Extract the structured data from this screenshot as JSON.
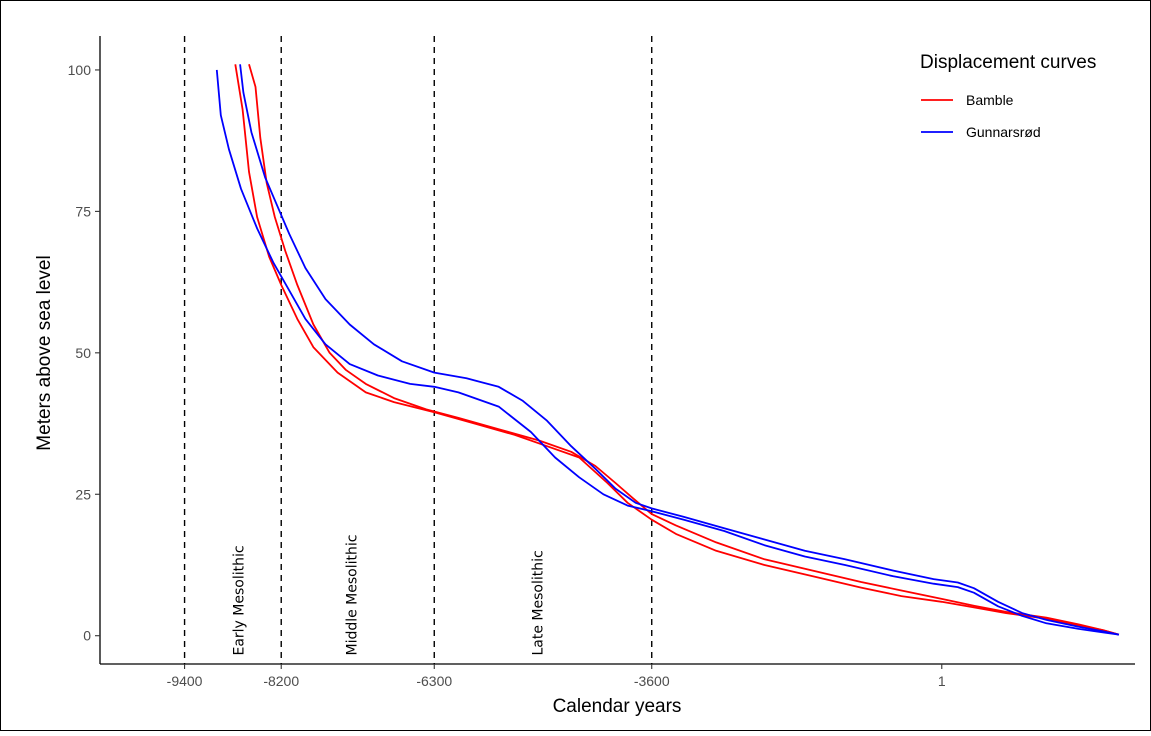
{
  "chart_data": {
    "type": "line",
    "title": "",
    "xlabel": "Calendar years",
    "ylabel": "Meters above sea level",
    "xlim": [
      -10450,
      2400
    ],
    "ylim": [
      -5,
      106
    ],
    "x_ticks": [
      -9400,
      -8200,
      -6300,
      -3600,
      1
    ],
    "x_tick_labels": [
      "-9400",
      "-8200",
      "-6300",
      "-3600",
      "1"
    ],
    "y_ticks": [
      0,
      25,
      50,
      75,
      100
    ],
    "y_tick_labels": [
      "0",
      "25",
      "50",
      "75",
      "100"
    ],
    "grid": false,
    "legend": {
      "title": "Displacement curves",
      "position": "top-right"
    },
    "period_boundaries": [
      -9400,
      -8200,
      -6300,
      -3600
    ],
    "periods": [
      {
        "label": "Early Mesolithic",
        "x": -8730
      },
      {
        "label": "Middle Mesolithic",
        "x": -7330
      },
      {
        "label": "Late Mesolithic",
        "x": -5020
      }
    ],
    "series": [
      {
        "name": "Bamble",
        "color": "#ff0000",
        "lower": [
          [
            -8770,
            101
          ],
          [
            -8680,
            93
          ],
          [
            -8600,
            82
          ],
          [
            -8500,
            74
          ],
          [
            -8350,
            67
          ],
          [
            -8200,
            62
          ],
          [
            -8000,
            56
          ],
          [
            -7800,
            51
          ],
          [
            -7500,
            46.5
          ],
          [
            -7150,
            43
          ],
          [
            -6800,
            41.3
          ],
          [
            -6300,
            39.5
          ],
          [
            -5800,
            37.5
          ],
          [
            -5300,
            35.5
          ],
          [
            -4900,
            33.5
          ],
          [
            -4500,
            31.5
          ],
          [
            -4150,
            27
          ],
          [
            -3900,
            23.5
          ],
          [
            -3600,
            20.5
          ],
          [
            -3300,
            18
          ],
          [
            -2800,
            15
          ],
          [
            -2200,
            12.5
          ],
          [
            -1600,
            10.5
          ],
          [
            -1000,
            8.5
          ],
          [
            -500,
            7
          ],
          [
            0,
            6
          ],
          [
            400,
            5
          ],
          [
            800,
            4
          ],
          [
            1300,
            3
          ],
          [
            1700,
            1.8
          ],
          [
            2000,
            1
          ],
          [
            2200,
            0.2
          ]
        ],
        "upper": [
          [
            -8600,
            101
          ],
          [
            -8520,
            97
          ],
          [
            -8460,
            88
          ],
          [
            -8380,
            80
          ],
          [
            -8280,
            74
          ],
          [
            -8150,
            68
          ],
          [
            -8000,
            62
          ],
          [
            -7800,
            55
          ],
          [
            -7600,
            50
          ],
          [
            -7400,
            47
          ],
          [
            -7150,
            44.5
          ],
          [
            -6800,
            42
          ],
          [
            -6400,
            40
          ],
          [
            -6000,
            38.5
          ],
          [
            -5500,
            36.5
          ],
          [
            -5000,
            34.5
          ],
          [
            -4600,
            32.5
          ],
          [
            -4300,
            30
          ],
          [
            -4050,
            27
          ],
          [
            -3850,
            24.5
          ],
          [
            -3600,
            21.5
          ],
          [
            -3300,
            19.5
          ],
          [
            -2800,
            16.5
          ],
          [
            -2200,
            13.5
          ],
          [
            -1600,
            11.5
          ],
          [
            -1000,
            9.5
          ],
          [
            -500,
            8
          ],
          [
            0,
            6.5
          ],
          [
            400,
            5.3
          ],
          [
            800,
            4.2
          ],
          [
            1300,
            3.2
          ],
          [
            1700,
            2
          ],
          [
            2000,
            1
          ],
          [
            2200,
            0.2
          ]
        ]
      },
      {
        "name": "Gunnarsrød",
        "color": "#0000ff",
        "lower": [
          [
            -9000,
            100
          ],
          [
            -8950,
            92
          ],
          [
            -8850,
            86
          ],
          [
            -8700,
            79
          ],
          [
            -8500,
            72
          ],
          [
            -8300,
            66
          ],
          [
            -8100,
            61
          ],
          [
            -7900,
            56
          ],
          [
            -7650,
            51.5
          ],
          [
            -7350,
            48
          ],
          [
            -7000,
            46
          ],
          [
            -6600,
            44.5
          ],
          [
            -6300,
            44
          ],
          [
            -6000,
            43
          ],
          [
            -5500,
            40.5
          ],
          [
            -5100,
            36
          ],
          [
            -4800,
            31.5
          ],
          [
            -4500,
            28
          ],
          [
            -4200,
            25
          ],
          [
            -3900,
            23
          ],
          [
            -3600,
            22
          ],
          [
            -3200,
            20.5
          ],
          [
            -2700,
            18.5
          ],
          [
            -2200,
            16
          ],
          [
            -1700,
            14
          ],
          [
            -1200,
            12.5
          ],
          [
            -600,
            10.5
          ],
          [
            -100,
            9.2
          ],
          [
            200,
            8.6
          ],
          [
            400,
            7.6
          ],
          [
            700,
            5.2
          ],
          [
            1000,
            3.5
          ],
          [
            1300,
            2.2
          ],
          [
            1700,
            1.2
          ],
          [
            2000,
            0.6
          ],
          [
            2200,
            0.2
          ]
        ],
        "upper": [
          [
            -8710,
            101
          ],
          [
            -8670,
            96
          ],
          [
            -8570,
            89
          ],
          [
            -8400,
            81
          ],
          [
            -8250,
            76
          ],
          [
            -8100,
            71
          ],
          [
            -7900,
            65
          ],
          [
            -7650,
            59.5
          ],
          [
            -7350,
            55
          ],
          [
            -7050,
            51.5
          ],
          [
            -6700,
            48.5
          ],
          [
            -6300,
            46.5
          ],
          [
            -5900,
            45.5
          ],
          [
            -5500,
            44
          ],
          [
            -5200,
            41.5
          ],
          [
            -4900,
            38
          ],
          [
            -4600,
            33.5
          ],
          [
            -4300,
            29.5
          ],
          [
            -4050,
            26
          ],
          [
            -3800,
            23.5
          ],
          [
            -3600,
            22.5
          ],
          [
            -3200,
            21
          ],
          [
            -2700,
            19
          ],
          [
            -2200,
            17
          ],
          [
            -1700,
            15
          ],
          [
            -1200,
            13.5
          ],
          [
            -600,
            11.5
          ],
          [
            -100,
            10
          ],
          [
            200,
            9.4
          ],
          [
            400,
            8.4
          ],
          [
            700,
            6
          ],
          [
            1000,
            4
          ],
          [
            1300,
            2.8
          ],
          [
            1700,
            1.6
          ],
          [
            2000,
            0.8
          ],
          [
            2200,
            0.2
          ]
        ]
      }
    ]
  }
}
